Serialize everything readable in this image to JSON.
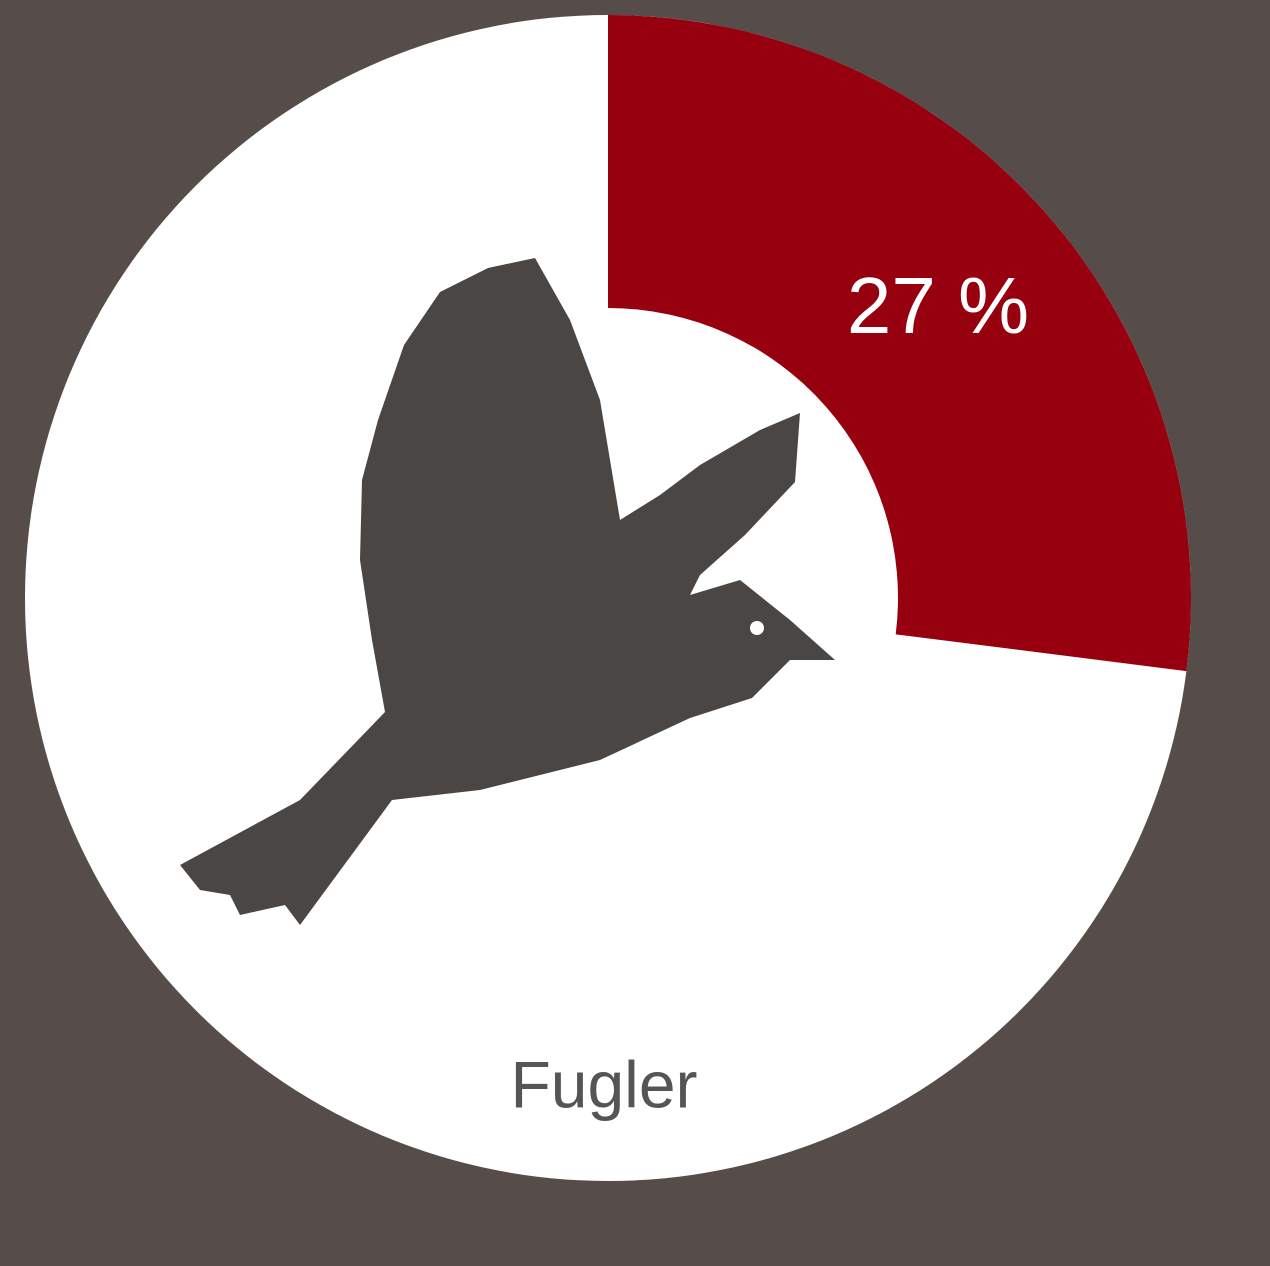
{
  "chart_data": {
    "type": "donut",
    "categories": [
      "Fugler"
    ],
    "values": [
      27
    ],
    "value_labels": [
      "27 %"
    ],
    "color": "#96000f"
  }
}
